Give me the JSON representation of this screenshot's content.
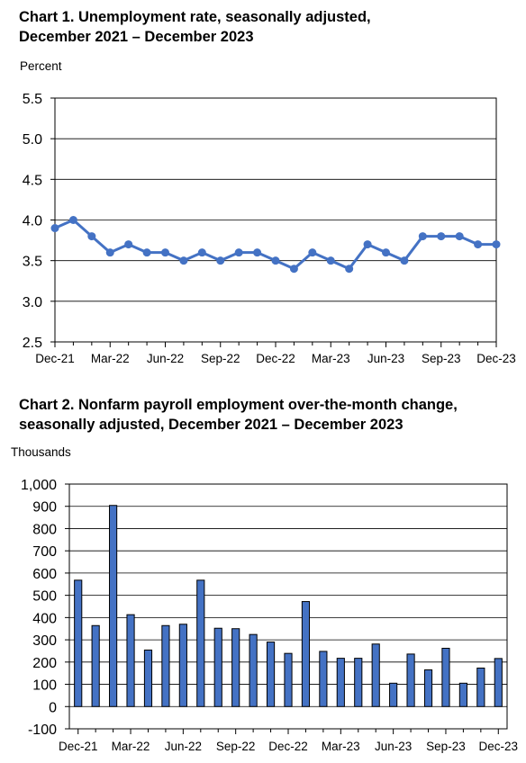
{
  "chart_data": [
    {
      "type": "line",
      "title_line1": "Chart 1. Unemployment rate, seasonally adjusted,",
      "title_line2": "December 2021 – December 2023",
      "ylabel": "Percent",
      "xlabel": "",
      "ylim": [
        2.5,
        5.5
      ],
      "yticks": [
        "2.5",
        "3.0",
        "3.5",
        "4.0",
        "4.5",
        "5.0",
        "5.5"
      ],
      "ytick_values": [
        2.5,
        3.0,
        3.5,
        4.0,
        4.5,
        5.0,
        5.5
      ],
      "xtick_labels": [
        "Dec-21",
        "Mar-22",
        "Jun-22",
        "Sep-22",
        "Dec-22",
        "Mar-23",
        "Jun-23",
        "Sep-23",
        "Dec-23"
      ],
      "categories": [
        "Dec-21",
        "Jan-22",
        "Feb-22",
        "Mar-22",
        "Apr-22",
        "May-22",
        "Jun-22",
        "Jul-22",
        "Aug-22",
        "Sep-22",
        "Oct-22",
        "Nov-22",
        "Dec-22",
        "Jan-23",
        "Feb-23",
        "Mar-23",
        "Apr-23",
        "May-23",
        "Jun-23",
        "Jul-23",
        "Aug-23",
        "Sep-23",
        "Oct-23",
        "Nov-23",
        "Dec-23"
      ],
      "values": [
        3.9,
        4.0,
        3.8,
        3.6,
        3.7,
        3.6,
        3.6,
        3.5,
        3.6,
        3.5,
        3.6,
        3.6,
        3.5,
        3.4,
        3.6,
        3.5,
        3.4,
        3.7,
        3.6,
        3.5,
        3.8,
        3.8,
        3.8,
        3.7,
        3.7
      ],
      "color": "#4472C4",
      "grid": "horizontal"
    },
    {
      "type": "bar",
      "title_line1": "Chart 2. Nonfarm payroll employment over-the-month change,",
      "title_line2": "seasonally adjusted, December 2021 – December 2023",
      "ylabel": "Thousands",
      "xlabel": "",
      "ylim": [
        -100,
        1000
      ],
      "yticks": [
        "-100",
        "0",
        "100",
        "200",
        "300",
        "400",
        "500",
        "600",
        "700",
        "800",
        "900",
        "1,000"
      ],
      "ytick_values": [
        -100,
        0,
        100,
        200,
        300,
        400,
        500,
        600,
        700,
        800,
        900,
        1000
      ],
      "xtick_labels": [
        "Dec-21",
        "Mar-22",
        "Jun-22",
        "Sep-22",
        "Dec-22",
        "Mar-23",
        "Jun-23",
        "Sep-23",
        "Dec-23"
      ],
      "categories": [
        "Dec-21",
        "Jan-22",
        "Feb-22",
        "Mar-22",
        "Apr-22",
        "May-22",
        "Jun-22",
        "Jul-22",
        "Aug-22",
        "Sep-22",
        "Oct-22",
        "Nov-22",
        "Dec-22",
        "Jan-23",
        "Feb-23",
        "Mar-23",
        "Apr-23",
        "May-23",
        "Jun-23",
        "Jul-23",
        "Aug-23",
        "Sep-23",
        "Oct-23",
        "Nov-23",
        "Dec-23"
      ],
      "values": [
        568,
        364,
        904,
        413,
        254,
        364,
        370,
        568,
        352,
        350,
        324,
        290,
        239,
        472,
        248,
        217,
        217,
        281,
        105,
        236,
        165,
        262,
        105,
        173,
        216
      ],
      "color": "#4472C4",
      "grid": "horizontal"
    }
  ]
}
